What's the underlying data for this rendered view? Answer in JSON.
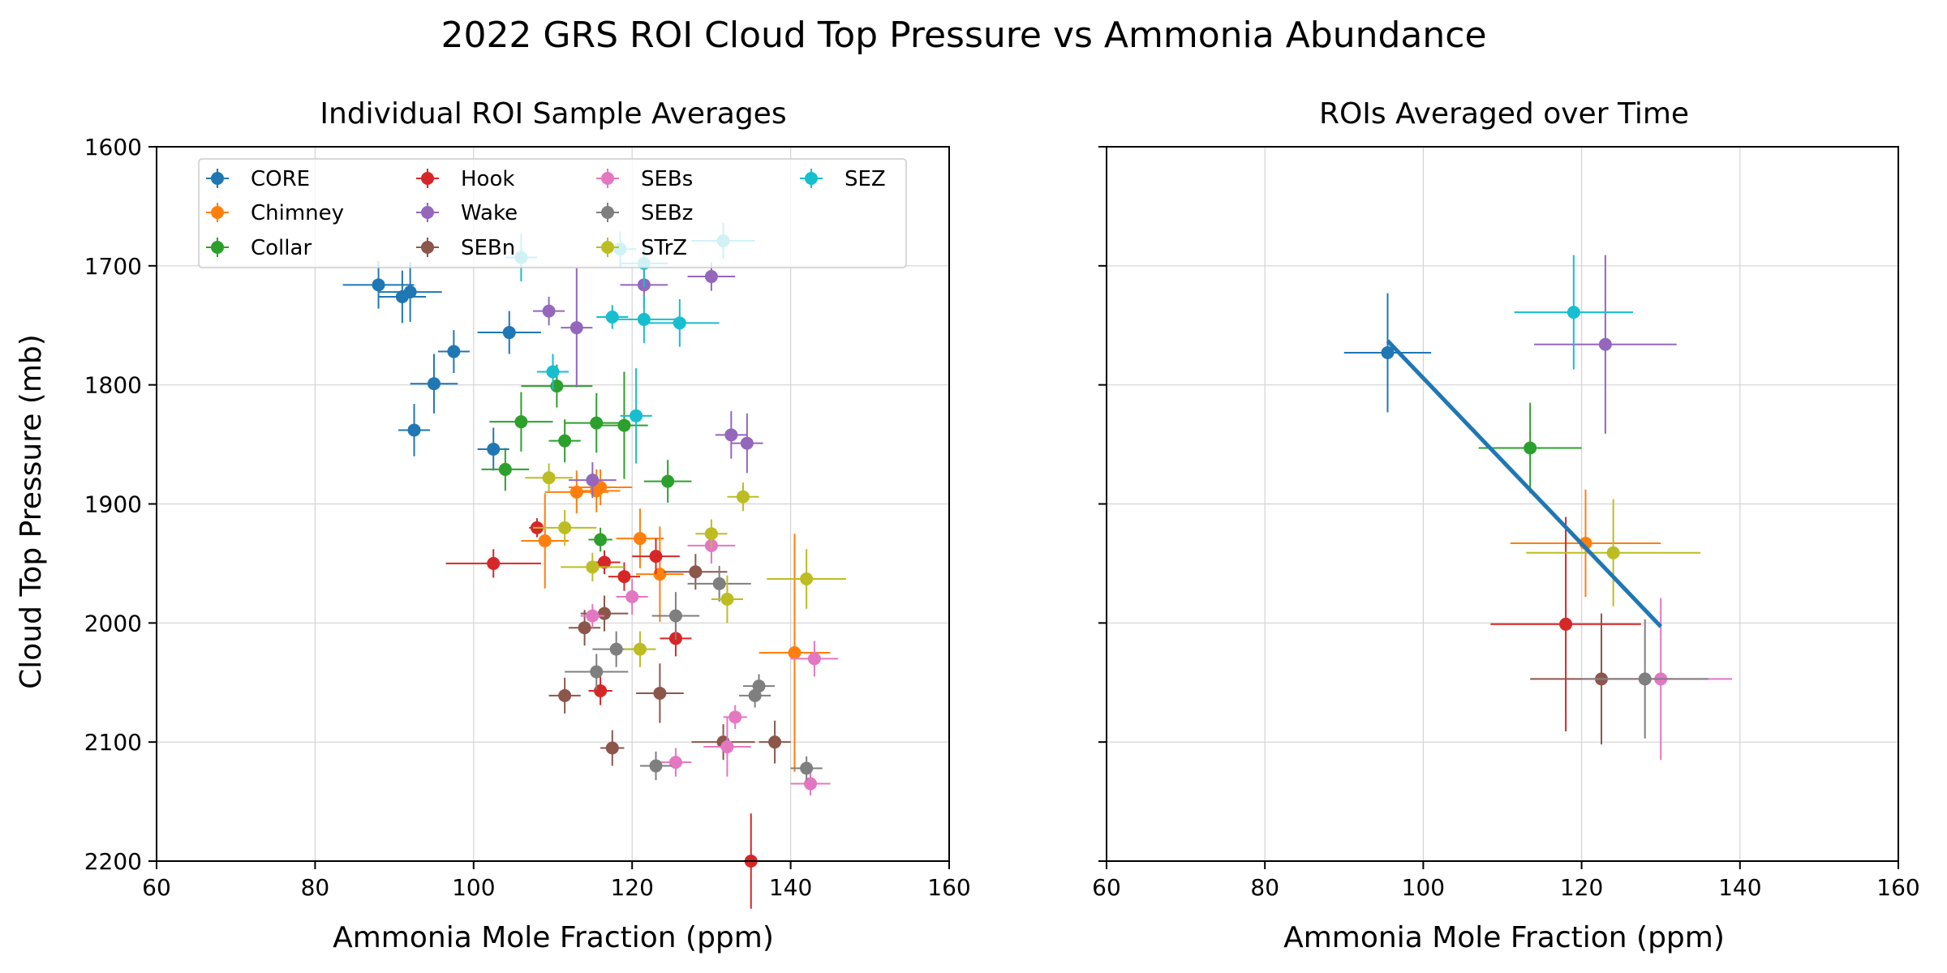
{
  "suptitle": "2022 GRS ROI Cloud Top Pressure vs Ammonia Abundance",
  "colors": {
    "CORE": "#1f77b4",
    "Chimney": "#ff7f0e",
    "Collar": "#2ca02c",
    "Hook": "#d62728",
    "Wake": "#9467bd",
    "SEBn": "#8c564b",
    "SEBs": "#e377c2",
    "SEBz": "#7f7f7f",
    "STrZ": "#bcbd22",
    "SEZ": "#17becf"
  },
  "chart_data": [
    {
      "type": "scatter",
      "title": "Individual ROI Sample Averages",
      "xlabel": "Ammonia Mole Fraction (ppm)",
      "ylabel": "Cloud Top Pressure (mb)",
      "xlim": [
        60,
        160
      ],
      "ylim": [
        2200,
        1600
      ],
      "y_inverted": true,
      "xticks": [
        "60",
        "80",
        "100",
        "120",
        "140",
        "160"
      ],
      "yticks": [
        "1600",
        "1700",
        "1800",
        "1900",
        "2000",
        "2100",
        "2200"
      ],
      "grid": true,
      "legend_placement": "top (4 columns)",
      "series": [
        {
          "name": "CORE",
          "points": [
            {
              "x": 88,
              "y": 1716,
              "xerr": 4.5,
              "yerr": 20
            },
            {
              "x": 91,
              "y": 1726,
              "xerr": 3,
              "yerr": 22
            },
            {
              "x": 92,
              "y": 1722,
              "xerr": 4,
              "yerr": 25
            },
            {
              "x": 97.5,
              "y": 1772,
              "xerr": 2,
              "yerr": 18
            },
            {
              "x": 95,
              "y": 1799,
              "xerr": 3,
              "yerr": 25
            },
            {
              "x": 104.5,
              "y": 1756,
              "xerr": 4,
              "yerr": 18
            },
            {
              "x": 92.5,
              "y": 1838,
              "xerr": 2,
              "yerr": 22
            },
            {
              "x": 102.5,
              "y": 1854,
              "xerr": 2,
              "yerr": 18
            }
          ]
        },
        {
          "name": "Chimney",
          "points": [
            {
              "x": 113,
              "y": 1890,
              "xerr": 4,
              "yerr": 18
            },
            {
              "x": 115.5,
              "y": 1889,
              "xerr": 3,
              "yerr": 18
            },
            {
              "x": 116,
              "y": 1886,
              "xerr": 4,
              "yerr": 15
            },
            {
              "x": 109,
              "y": 1931,
              "xerr": 3,
              "yerr": 40
            },
            {
              "x": 121,
              "y": 1929,
              "xerr": 3,
              "yerr": 25
            },
            {
              "x": 123.5,
              "y": 1959,
              "xerr": 3,
              "yerr": 40
            },
            {
              "x": 140.5,
              "y": 2025,
              "xerr": 4.5,
              "yerr": 100
            }
          ]
        },
        {
          "name": "Collar",
          "points": [
            {
              "x": 110.5,
              "y": 1801,
              "xerr": 4.5,
              "yerr": 18
            },
            {
              "x": 106,
              "y": 1831,
              "xerr": 4,
              "yerr": 25
            },
            {
              "x": 111.5,
              "y": 1847,
              "xerr": 2,
              "yerr": 18
            },
            {
              "x": 115.5,
              "y": 1832,
              "xerr": 4,
              "yerr": 25
            },
            {
              "x": 119,
              "y": 1834,
              "xerr": 3,
              "yerr": 45
            },
            {
              "x": 104,
              "y": 1871,
              "xerr": 3,
              "yerr": 18
            },
            {
              "x": 124.5,
              "y": 1881,
              "xerr": 3,
              "yerr": 18
            },
            {
              "x": 116,
              "y": 1930,
              "xerr": 1.5,
              "yerr": 10
            }
          ]
        },
        {
          "name": "Hook",
          "points": [
            {
              "x": 108,
              "y": 1920,
              "xerr": 1,
              "yerr": 8
            },
            {
              "x": 102.5,
              "y": 1950,
              "xerr": 6,
              "yerr": 12
            },
            {
              "x": 116.5,
              "y": 1949,
              "xerr": 2,
              "yerr": 10
            },
            {
              "x": 123,
              "y": 1944,
              "xerr": 3,
              "yerr": 15
            },
            {
              "x": 119,
              "y": 1961,
              "xerr": 2,
              "yerr": 12
            },
            {
              "x": 125.5,
              "y": 2013,
              "xerr": 2,
              "yerr": 15
            },
            {
              "x": 116,
              "y": 2057,
              "xerr": 1.5,
              "yerr": 12
            },
            {
              "x": 135,
              "y": 2200,
              "xerr": 0,
              "yerr": 40
            }
          ]
        },
        {
          "name": "Wake",
          "points": [
            {
              "x": 109.5,
              "y": 1738,
              "xerr": 2,
              "yerr": 12
            },
            {
              "x": 113,
              "y": 1752,
              "xerr": 2,
              "yerr": 50
            },
            {
              "x": 121.5,
              "y": 1716,
              "xerr": 3,
              "yerr": 20
            },
            {
              "x": 130,
              "y": 1709,
              "xerr": 3,
              "yerr": 12
            },
            {
              "x": 132.5,
              "y": 1842,
              "xerr": 2,
              "yerr": 20
            },
            {
              "x": 134.5,
              "y": 1849,
              "xerr": 2,
              "yerr": 25
            },
            {
              "x": 115,
              "y": 1880,
              "xerr": 3,
              "yerr": 15
            }
          ]
        },
        {
          "name": "SEBn",
          "points": [
            {
              "x": 114,
              "y": 2004,
              "xerr": 2,
              "yerr": 15
            },
            {
              "x": 116.5,
              "y": 1992,
              "xerr": 3,
              "yerr": 15
            },
            {
              "x": 128,
              "y": 1957,
              "xerr": 4,
              "yerr": 15
            },
            {
              "x": 111.5,
              "y": 2061,
              "xerr": 2,
              "yerr": 15
            },
            {
              "x": 123.5,
              "y": 2059,
              "xerr": 3,
              "yerr": 25
            },
            {
              "x": 117.5,
              "y": 2105,
              "xerr": 1.5,
              "yerr": 15
            },
            {
              "x": 131.5,
              "y": 2100,
              "xerr": 4,
              "yerr": 15
            },
            {
              "x": 138,
              "y": 2100,
              "xerr": 2,
              "yerr": 18
            }
          ]
        },
        {
          "name": "SEBs",
          "points": [
            {
              "x": 115,
              "y": 1994,
              "xerr": 1.5,
              "yerr": 10
            },
            {
              "x": 120,
              "y": 1978,
              "xerr": 2,
              "yerr": 15
            },
            {
              "x": 130,
              "y": 1935,
              "xerr": 3,
              "yerr": 15
            },
            {
              "x": 133,
              "y": 2079,
              "xerr": 1.5,
              "yerr": 10
            },
            {
              "x": 143,
              "y": 2030,
              "xerr": 3,
              "yerr": 15
            },
            {
              "x": 125.5,
              "y": 2117,
              "xerr": 2,
              "yerr": 12
            },
            {
              "x": 132,
              "y": 2104,
              "xerr": 3,
              "yerr": 25
            },
            {
              "x": 142.5,
              "y": 2135,
              "xerr": 2.5,
              "yerr": 10
            }
          ]
        },
        {
          "name": "SEBz",
          "points": [
            {
              "x": 118,
              "y": 2022,
              "xerr": 3,
              "yerr": 15
            },
            {
              "x": 125.5,
              "y": 1994,
              "xerr": 3,
              "yerr": 20
            },
            {
              "x": 131,
              "y": 1967,
              "xerr": 4,
              "yerr": 15
            },
            {
              "x": 115.5,
              "y": 2041,
              "xerr": 4,
              "yerr": 15
            },
            {
              "x": 136,
              "y": 2053,
              "xerr": 2,
              "yerr": 10
            },
            {
              "x": 135.5,
              "y": 2061,
              "xerr": 2,
              "yerr": 10
            },
            {
              "x": 123,
              "y": 2120,
              "xerr": 2,
              "yerr": 12
            },
            {
              "x": 142,
              "y": 2122,
              "xerr": 2,
              "yerr": 10
            }
          ]
        },
        {
          "name": "STrZ",
          "points": [
            {
              "x": 109.5,
              "y": 1878,
              "xerr": 3,
              "yerr": 12
            },
            {
              "x": 111.5,
              "y": 1920,
              "xerr": 4,
              "yerr": 15
            },
            {
              "x": 115,
              "y": 1953,
              "xerr": 4,
              "yerr": 12
            },
            {
              "x": 121,
              "y": 2022,
              "xerr": 2,
              "yerr": 15
            },
            {
              "x": 130,
              "y": 1925,
              "xerr": 2,
              "yerr": 12
            },
            {
              "x": 134,
              "y": 1894,
              "xerr": 2,
              "yerr": 12
            },
            {
              "x": 132,
              "y": 1980,
              "xerr": 2,
              "yerr": 20
            },
            {
              "x": 142,
              "y": 1963,
              "xerr": 5,
              "yerr": 25
            }
          ]
        },
        {
          "name": "SEZ",
          "points": [
            {
              "x": 106,
              "y": 1693,
              "xerr": 2,
              "yerr": 20
            },
            {
              "x": 118.5,
              "y": 1686,
              "xerr": 2,
              "yerr": 15
            },
            {
              "x": 121.5,
              "y": 1698,
              "xerr": 3,
              "yerr": 20
            },
            {
              "x": 131.5,
              "y": 1679,
              "xerr": 4,
              "yerr": 15
            },
            {
              "x": 110,
              "y": 1789,
              "xerr": 2,
              "yerr": 15
            },
            {
              "x": 117.5,
              "y": 1743,
              "xerr": 2,
              "yerr": 10
            },
            {
              "x": 121.5,
              "y": 1745,
              "xerr": 4,
              "yerr": 20
            },
            {
              "x": 126,
              "y": 1748,
              "xerr": 5,
              "yerr": 20
            },
            {
              "x": 120.5,
              "y": 1826,
              "xerr": 2,
              "yerr": 40
            }
          ]
        }
      ]
    },
    {
      "type": "scatter",
      "title": "ROIs Averaged over Time",
      "xlabel": "Ammonia Mole Fraction (ppm)",
      "ylabel": "",
      "xlim": [
        60,
        160
      ],
      "ylim": [
        2200,
        1600
      ],
      "y_inverted": true,
      "xticks": [
        "60",
        "80",
        "100",
        "120",
        "140",
        "160"
      ],
      "grid": true,
      "series": [
        {
          "name": "CORE",
          "points": [
            {
              "x": 95.5,
              "y": 1773,
              "xerr": 5.5,
              "yerr": 50
            }
          ]
        },
        {
          "name": "Chimney",
          "points": [
            {
              "x": 120.5,
              "y": 1933,
              "xerr": 9.5,
              "yerr": 45
            }
          ]
        },
        {
          "name": "Collar",
          "points": [
            {
              "x": 113.5,
              "y": 1853,
              "xerr": 6.5,
              "yerr": 38
            }
          ]
        },
        {
          "name": "Hook",
          "points": [
            {
              "x": 118,
              "y": 2001,
              "xerr": 9.5,
              "yerr": 90
            }
          ]
        },
        {
          "name": "Wake",
          "points": [
            {
              "x": 123,
              "y": 1766,
              "xerr": 9,
              "yerr": 75
            }
          ]
        },
        {
          "name": "SEBn",
          "points": [
            {
              "x": 122.5,
              "y": 2047,
              "xerr": 9,
              "yerr": 55
            }
          ]
        },
        {
          "name": "SEBs",
          "points": [
            {
              "x": 130,
              "y": 2047,
              "xerr": 9,
              "yerr": 68
            }
          ]
        },
        {
          "name": "SEBz",
          "points": [
            {
              "x": 128,
              "y": 2047,
              "xerr": 8,
              "yerr": 50
            }
          ]
        },
        {
          "name": "STrZ",
          "points": [
            {
              "x": 124,
              "y": 1941,
              "xerr": 11,
              "yerr": 45
            }
          ]
        },
        {
          "name": "SEZ",
          "points": [
            {
              "x": 119,
              "y": 1739,
              "xerr": 7.5,
              "yerr": 48
            }
          ]
        }
      ],
      "fit_line": {
        "x": [
          95.5,
          130
        ],
        "y": [
          1763,
          2003
        ],
        "color": "#1f77b4"
      }
    }
  ]
}
